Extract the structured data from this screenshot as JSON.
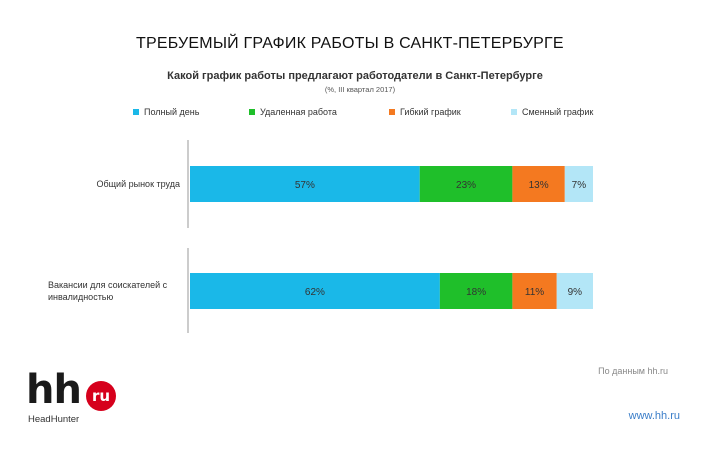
{
  "slide": {
    "title": "ТРЕБУЕМЫЙ ГРАФИК РАБОТЫ В САНКТ-ПЕТЕРБУРГЕ",
    "footnote": "По данным hh.ru",
    "website": "www.hh.ru"
  },
  "logo": {
    "hh": "hh",
    "ru": "ru",
    "brand": "HeadHunter"
  },
  "chart_data": {
    "type": "bar",
    "orientation": "horizontal",
    "stacked": true,
    "title": "Какой график работы предлагают работодатели в Санкт-Петербурге",
    "subtitle": "(%, III квартал 2017)",
    "categories": [
      "Общий рынок труда",
      "Вакансии для соискателей с инвалидностью"
    ],
    "series": [
      {
        "name": "Полный день",
        "values": [
          57,
          62
        ],
        "color": "#1ab8e8"
      },
      {
        "name": "Удаленная работа",
        "values": [
          23,
          18
        ],
        "color": "#1fbf2a"
      },
      {
        "name": "Гибкий график",
        "values": [
          13,
          11
        ],
        "color": "#f47920"
      },
      {
        "name": "Сменный график",
        "values": [
          7,
          9
        ],
        "color": "#b3e6f7"
      }
    ],
    "value_suffix": "%",
    "legend_position": "top",
    "grid": false
  }
}
